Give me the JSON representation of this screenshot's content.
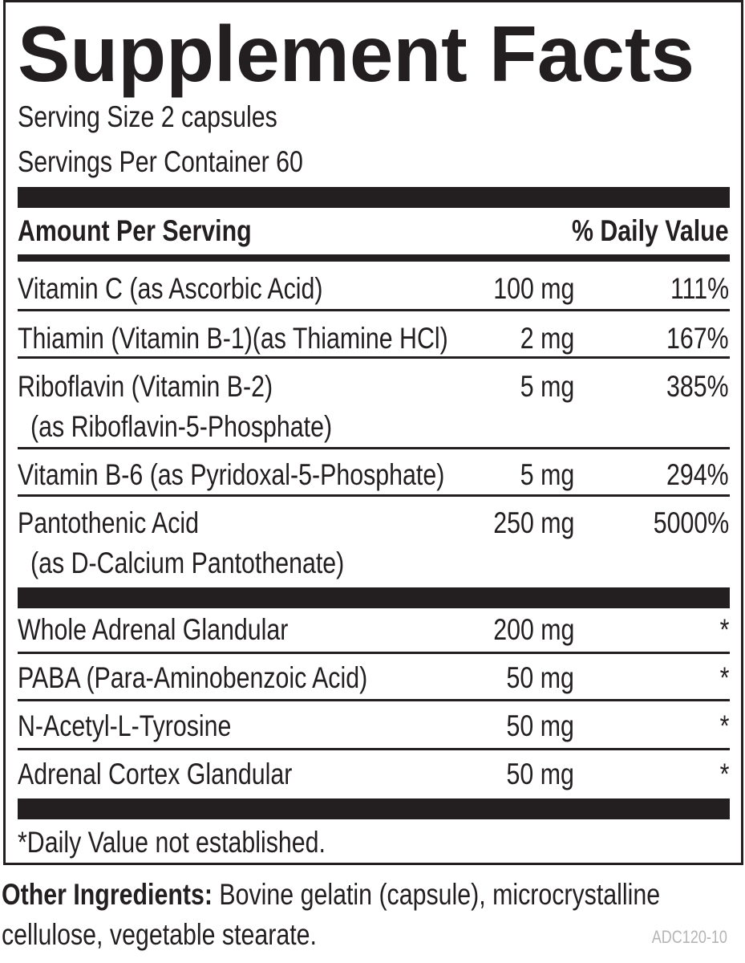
{
  "title": "Supplement Facts",
  "serving_size": "Serving Size 2 capsules",
  "servings_per_container": "Servings Per Container 60",
  "header": {
    "amount": "Amount Per Serving",
    "dv": "% Daily Value"
  },
  "vitamins": [
    {
      "name": "Vitamin C (as Ascorbic Acid)",
      "amount": "100 mg",
      "dv": "111%"
    },
    {
      "name": "Thiamin (Vitamin B-1)(as Thiamine HCl)",
      "amount": "2 mg",
      "dv": "167%"
    },
    {
      "name": "Riboflavin (Vitamin B-2)",
      "source": "(as Riboflavin-5-Phosphate)",
      "amount": "5 mg",
      "dv": "385%"
    },
    {
      "name": "Vitamin B-6 (as Pyridoxal-5-Phosphate)",
      "amount": "5 mg",
      "dv": "294%"
    },
    {
      "name": "Pantothenic Acid",
      "source": "(as D-Calcium Pantothenate)",
      "amount": "250 mg",
      "dv": "5000%"
    }
  ],
  "ingredients": [
    {
      "name": "Whole Adrenal Glandular",
      "amount": "200 mg",
      "dv": "*"
    },
    {
      "name": "PABA (Para-Aminobenzoic Acid)",
      "amount": "50 mg",
      "dv": "*"
    },
    {
      "name": "N-Acetyl-L-Tyrosine",
      "amount": "50 mg",
      "dv": "*"
    },
    {
      "name": "Adrenal Cortex Glandular",
      "amount": "50 mg",
      "dv": "*"
    }
  ],
  "footnote": "*Daily Value not established.",
  "other_ingredients": {
    "label": "Other Ingredients:",
    "text": "Bovine gelatin (capsule), microcrystalline cellulose, vegetable stearate."
  },
  "code": "ADC120-10"
}
